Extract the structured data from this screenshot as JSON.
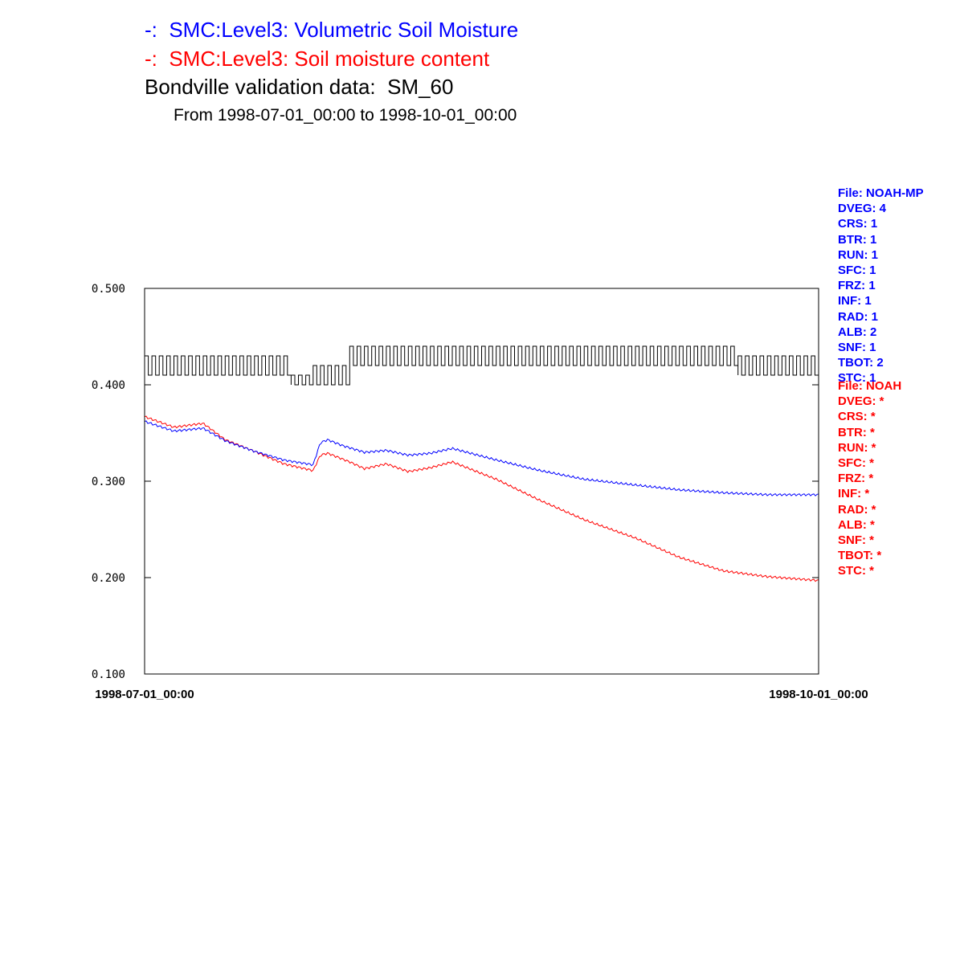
{
  "titles": {
    "line1": "-:  SMC:Level3: Volumetric Soil Moisture",
    "line2": "-:  SMC:Level3: Soil moisture content",
    "line3": "Bondville validation data:  SM_60",
    "line4": "From 1998-07-01_00:00 to 1998-10-01_00:00"
  },
  "colors": {
    "noahmp": "#0000ff",
    "noah": "#ff0000",
    "obs": "#000000"
  },
  "info_blue": [
    "File: NOAH-MP",
    "DVEG: 4",
    "CRS: 1",
    "BTR: 1",
    "RUN: 1",
    "SFC: 1",
    "FRZ: 1",
    "INF: 1",
    "RAD: 1",
    "ALB: 2",
    "SNF: 1",
    "TBOT: 2",
    "STC: 1"
  ],
  "info_red": [
    "File: NOAH",
    "DVEG: *",
    "CRS: *",
    "BTR: *",
    "RUN: *",
    "SFC: *",
    "FRZ: *",
    "INF: *",
    "RAD: *",
    "ALB: *",
    "SNF: *",
    "TBOT: *",
    "STC: *"
  ],
  "chart_data": {
    "type": "line",
    "title": "Bondville validation data:  SM_60",
    "subtitle": "From 1998-07-01_00:00 to 1998-10-01_00:00",
    "xlabel": "",
    "ylabel": "",
    "x_range": [
      "1998-07-01_00:00",
      "1998-10-01_00:00"
    ],
    "x_tick_labels": [
      "1998-07-01_00:00",
      "1998-10-01_00:00"
    ],
    "ylim": [
      0.1,
      0.5
    ],
    "y_ticks": [
      0.1,
      0.2,
      0.3,
      0.4,
      0.5
    ],
    "y_tick_labels": [
      "0.100",
      "0.200",
      "0.300",
      "0.400",
      "0.500"
    ],
    "grid": false,
    "series": [
      {
        "name": "SMC:Level3: Volumetric Soil Moisture",
        "color": "#0000ff",
        "x": [
          "1998-07-01",
          "1998-07-05",
          "1998-07-09",
          "1998-07-12",
          "1998-07-16",
          "1998-07-20",
          "1998-07-24",
          "1998-07-25",
          "1998-07-26",
          "1998-07-28",
          "1998-07-31",
          "1998-08-03",
          "1998-08-06",
          "1998-08-09",
          "1998-08-12",
          "1998-08-18",
          "1998-08-24",
          "1998-08-30",
          "1998-09-06",
          "1998-09-12",
          "1998-09-18",
          "1998-09-24",
          "1998-10-01"
        ],
        "values": [
          0.362,
          0.352,
          0.355,
          0.342,
          0.331,
          0.322,
          0.317,
          0.34,
          0.343,
          0.337,
          0.33,
          0.332,
          0.327,
          0.329,
          0.334,
          0.322,
          0.311,
          0.302,
          0.296,
          0.291,
          0.288,
          0.286,
          0.286
        ]
      },
      {
        "name": "SMC:Level3: Soil moisture content",
        "color": "#ff0000",
        "x": [
          "1998-07-01",
          "1998-07-05",
          "1998-07-09",
          "1998-07-12",
          "1998-07-16",
          "1998-07-20",
          "1998-07-24",
          "1998-07-25",
          "1998-07-26",
          "1998-07-29",
          "1998-07-31",
          "1998-08-03",
          "1998-08-06",
          "1998-08-09",
          "1998-08-12",
          "1998-08-18",
          "1998-08-24",
          "1998-08-30",
          "1998-09-06",
          "1998-09-12",
          "1998-09-18",
          "1998-09-24",
          "1998-10-01"
        ],
        "values": [
          0.367,
          0.356,
          0.36,
          0.343,
          0.331,
          0.318,
          0.311,
          0.327,
          0.329,
          0.32,
          0.313,
          0.318,
          0.31,
          0.314,
          0.32,
          0.302,
          0.28,
          0.26,
          0.241,
          0.221,
          0.207,
          0.201,
          0.197
        ]
      },
      {
        "name": "Bondville validation data:  SM_60",
        "color": "#000000",
        "low_value": 0.41,
        "high_value": 0.43,
        "segments": [
          {
            "start": "1998-07-01",
            "end": "1998-07-21",
            "low": 0.41,
            "high": 0.43
          },
          {
            "start": "1998-07-21",
            "end": "1998-07-24",
            "low": 0.4,
            "high": 0.41
          },
          {
            "start": "1998-07-24",
            "end": "1998-07-29",
            "low": 0.4,
            "high": 0.42
          },
          {
            "start": "1998-07-29",
            "end": "1998-09-20",
            "low": 0.42,
            "high": 0.44
          },
          {
            "start": "1998-09-20",
            "end": "1998-10-01",
            "low": 0.41,
            "high": 0.43
          }
        ]
      }
    ]
  }
}
